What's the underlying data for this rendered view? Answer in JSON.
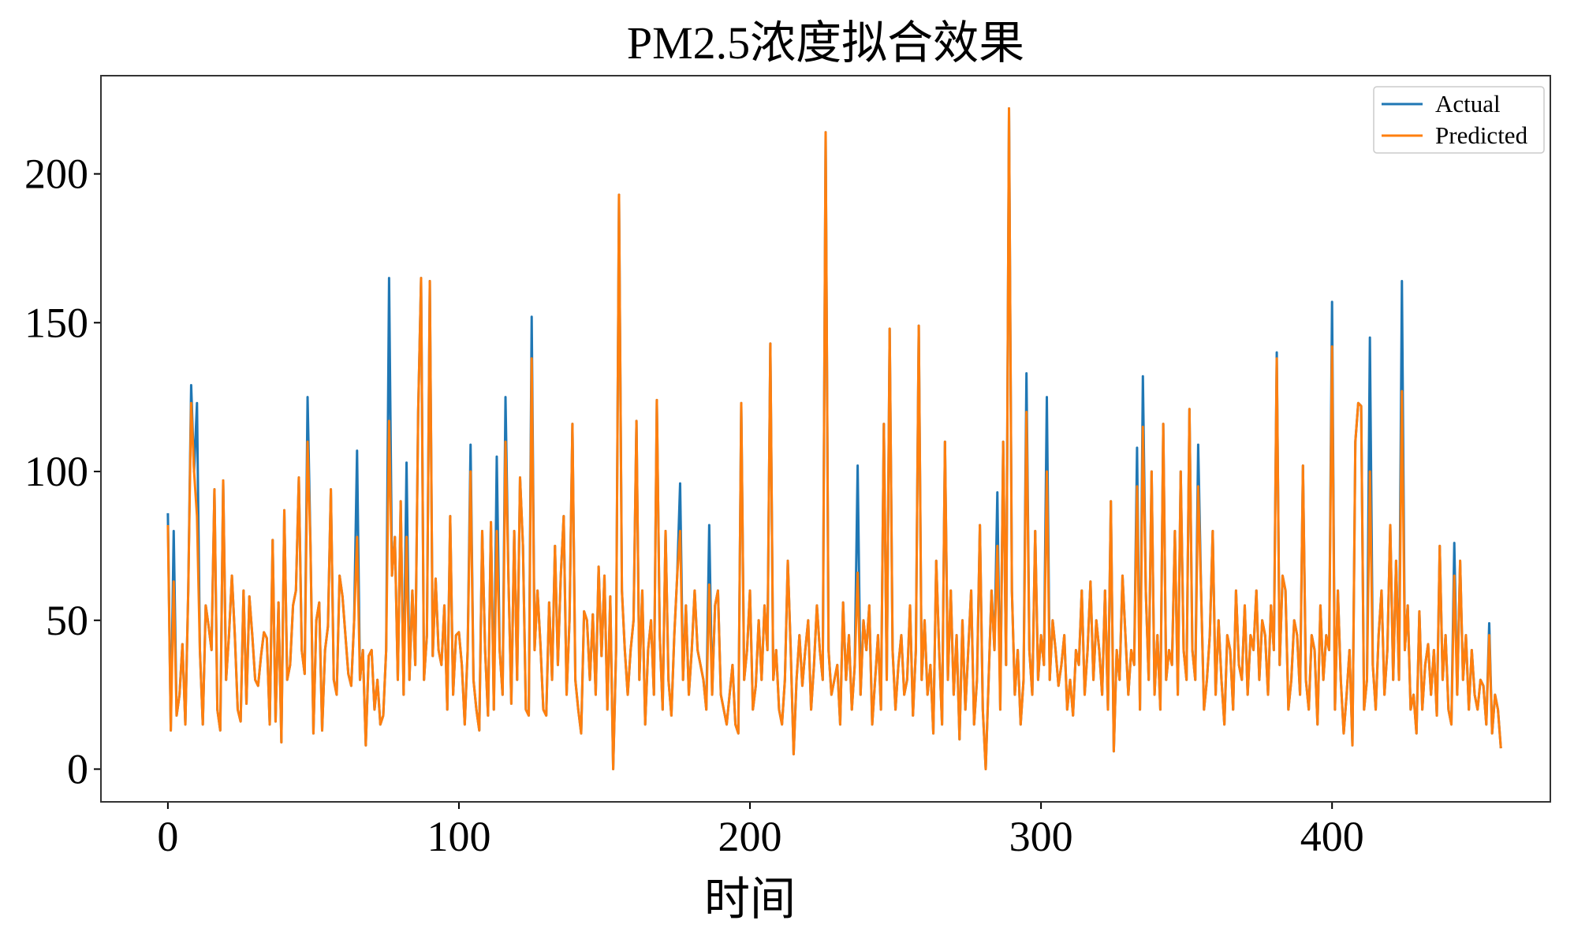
{
  "chart_data": {
    "type": "line",
    "title": "PM2.5浓度拟合效果",
    "x_label": "时间",
    "xlim": [
      -23,
      475
    ],
    "ylim": [
      -11,
      233
    ],
    "xticks": [
      0,
      100,
      200,
      300,
      400
    ],
    "yticks": [
      0,
      50,
      100,
      150,
      200
    ],
    "legend": "upper right",
    "x": [
      0,
      1,
      2,
      3,
      4,
      5,
      6,
      7,
      8,
      9,
      10,
      11,
      12,
      13,
      14,
      15,
      16,
      17,
      18,
      19,
      20,
      21,
      22,
      23,
      24,
      25,
      26,
      27,
      28,
      29,
      30,
      31,
      32,
      33,
      34,
      35,
      36,
      37,
      38,
      39,
      40,
      41,
      42,
      43,
      44,
      45,
      46,
      47,
      48,
      49,
      50,
      51,
      52,
      53,
      54,
      55,
      56,
      57,
      58,
      59,
      60,
      61,
      62,
      63,
      64,
      65,
      66,
      67,
      68,
      69,
      70,
      71,
      72,
      73,
      74,
      75,
      76,
      77,
      78,
      79,
      80,
      81,
      82,
      83,
      84,
      85,
      86,
      87,
      88,
      89,
      90,
      91,
      92,
      93,
      94,
      95,
      96,
      97,
      98,
      99,
      100,
      101,
      102,
      103,
      104,
      105,
      106,
      107,
      108,
      109,
      110,
      111,
      112,
      113,
      114,
      115,
      116,
      117,
      118,
      119,
      120,
      121,
      122,
      123,
      124,
      125,
      126,
      127,
      128,
      129,
      130,
      131,
      132,
      133,
      134,
      135,
      136,
      137,
      138,
      139,
      140,
      141,
      142,
      143,
      144,
      145,
      146,
      147,
      148,
      149,
      150,
      151,
      152,
      153,
      154,
      155,
      156,
      157,
      158,
      159,
      160,
      161,
      162,
      163,
      164,
      165,
      166,
      167,
      168,
      169,
      170,
      171,
      172,
      173,
      174,
      175,
      176,
      177,
      178,
      179,
      180,
      181,
      182,
      183,
      184,
      185,
      186,
      187,
      188,
      189,
      190,
      191,
      192,
      193,
      194,
      195,
      196,
      197,
      198,
      199,
      200,
      201,
      202,
      203,
      204,
      205,
      206,
      207,
      208,
      209,
      210,
      211,
      212,
      213,
      214,
      215,
      216,
      217,
      218,
      219,
      220,
      221,
      222,
      223,
      224,
      225,
      226,
      227,
      228,
      229,
      230,
      231,
      232,
      233,
      234,
      235,
      236,
      237,
      238,
      239,
      240,
      241,
      242,
      243,
      244,
      245,
      246,
      247,
      248,
      249,
      250,
      251,
      252,
      253,
      254,
      255,
      256,
      257,
      258,
      259,
      260,
      261,
      262,
      263,
      264,
      265,
      266,
      267,
      268,
      269,
      270,
      271,
      272,
      273,
      274,
      275,
      276,
      277,
      278,
      279,
      280,
      281,
      282,
      283,
      284,
      285,
      286,
      287,
      288,
      289,
      290,
      291,
      292,
      293,
      294,
      295,
      296,
      297,
      298,
      299,
      300,
      301,
      302,
      303,
      304,
      305,
      306,
      307,
      308,
      309,
      310,
      311,
      312,
      313,
      314,
      315,
      316,
      317,
      318,
      319,
      320,
      321,
      322,
      323,
      324,
      325,
      326,
      327,
      328,
      329,
      330,
      331,
      332,
      333,
      334,
      335,
      336,
      337,
      338,
      339,
      340,
      341,
      342,
      343,
      344,
      345,
      346,
      347,
      348,
      349,
      350,
      351,
      352,
      353,
      354,
      355,
      356,
      357,
      358,
      359,
      360,
      361,
      362,
      363,
      364,
      365,
      366,
      367,
      368,
      369,
      370,
      371,
      372,
      373,
      374,
      375,
      376,
      377,
      378,
      379,
      380,
      381,
      382,
      383,
      384,
      385,
      386,
      387,
      388,
      389,
      390,
      391,
      392,
      393,
      394,
      395,
      396,
      397,
      398,
      399,
      400,
      401,
      402,
      403,
      404,
      405,
      406,
      407,
      408,
      409,
      410,
      411,
      412,
      413,
      414,
      415,
      416,
      417,
      418,
      419,
      420,
      421,
      422,
      423,
      424,
      425,
      426,
      427,
      428,
      429,
      430,
      431,
      432,
      433,
      434,
      435,
      436,
      437,
      438,
      439,
      440,
      441,
      442,
      443,
      444,
      445,
      446,
      447,
      448,
      449,
      450,
      451,
      452,
      453,
      454,
      455,
      456,
      457,
      458
    ],
    "series": [
      {
        "name": "Actual",
        "color": "#1f77b4",
        "values": [
          86,
          13,
          80,
          18,
          25,
          42,
          15,
          60,
          129,
          100,
          123,
          40,
          15,
          55,
          48,
          40,
          94,
          20,
          13,
          97,
          30,
          45,
          65,
          45,
          20,
          16,
          60,
          22,
          58,
          45,
          30,
          28,
          38,
          46,
          44,
          15,
          77,
          16,
          56,
          9,
          87,
          30,
          35,
          55,
          60,
          98,
          40,
          32,
          125,
          75,
          12,
          50,
          56,
          13,
          40,
          48,
          94,
          30,
          25,
          65,
          58,
          45,
          32,
          28,
          50,
          107,
          30,
          40,
          8,
          38,
          40,
          20,
          30,
          15,
          18,
          40,
          165,
          65,
          78,
          30,
          90,
          25,
          103,
          30,
          60,
          35,
          120,
          165,
          30,
          45,
          164,
          38,
          64,
          40,
          35,
          55,
          20,
          85,
          25,
          45,
          46,
          35,
          15,
          40,
          109,
          30,
          20,
          13,
          80,
          40,
          18,
          83,
          20,
          105,
          40,
          25,
          125,
          65,
          22,
          80,
          30,
          98,
          75,
          20,
          18,
          152,
          40,
          60,
          42,
          20,
          18,
          56,
          30,
          75,
          35,
          65,
          85,
          25,
          50,
          116,
          30,
          20,
          12,
          53,
          50,
          30,
          52,
          25,
          68,
          38,
          65,
          20,
          58,
          0,
          40,
          193,
          60,
          40,
          25,
          40,
          50,
          117,
          30,
          60,
          15,
          40,
          50,
          25,
          124,
          45,
          20,
          80,
          30,
          18,
          45,
          65,
          96,
          30,
          55,
          25,
          40,
          60,
          40,
          35,
          30,
          20,
          82,
          25,
          55,
          60,
          25,
          20,
          15,
          25,
          35,
          15,
          12,
          123,
          30,
          40,
          60,
          20,
          28,
          50,
          30,
          55,
          40,
          143,
          30,
          40,
          20,
          15,
          30,
          70,
          40,
          5,
          30,
          45,
          28,
          40,
          50,
          20,
          35,
          55,
          40,
          30,
          214,
          40,
          25,
          30,
          35,
          15,
          56,
          30,
          45,
          20,
          35,
          102,
          25,
          50,
          40,
          55,
          15,
          30,
          45,
          20,
          116,
          30,
          148,
          40,
          20,
          35,
          45,
          25,
          30,
          55,
          18,
          40,
          149,
          30,
          50,
          25,
          35,
          12,
          70,
          40,
          15,
          110,
          30,
          60,
          25,
          45,
          10,
          50,
          20,
          40,
          60,
          15,
          30,
          82,
          20,
          0,
          30,
          60,
          40,
          93,
          20,
          110,
          35,
          222,
          60,
          25,
          40,
          15,
          30,
          133,
          40,
          25,
          80,
          30,
          45,
          35,
          125,
          30,
          50,
          40,
          28,
          35,
          45,
          20,
          30,
          18,
          40,
          35,
          60,
          25,
          40,
          63,
          30,
          50,
          40,
          25,
          60,
          20,
          90,
          6,
          40,
          30,
          65,
          45,
          25,
          40,
          35,
          108,
          20,
          132,
          60,
          30,
          100,
          25,
          45,
          20,
          116,
          30,
          40,
          35,
          80,
          25,
          100,
          40,
          30,
          121,
          40,
          30,
          109,
          60,
          20,
          30,
          45,
          80,
          25,
          50,
          30,
          15,
          45,
          40,
          20,
          60,
          35,
          30,
          55,
          25,
          45,
          40,
          60,
          30,
          50,
          45,
          25,
          55,
          40,
          140,
          35,
          65,
          60,
          20,
          30,
          50,
          45,
          25,
          102,
          30,
          20,
          45,
          40,
          15,
          55,
          30,
          45,
          40,
          157,
          20,
          60,
          30,
          12,
          25,
          40,
          8,
          110,
          123,
          122,
          20,
          30,
          145,
          35,
          20,
          45,
          60,
          25,
          40,
          82,
          30,
          70,
          30,
          164,
          40,
          55,
          20,
          25,
          12,
          53,
          20,
          35,
          42,
          25,
          40,
          18,
          75,
          30,
          45,
          20,
          15,
          76,
          25,
          70,
          30,
          45,
          20,
          40,
          25,
          20,
          30,
          28,
          15,
          49,
          12,
          25,
          20,
          7
        ]
      },
      {
        "name": "Predicted",
        "color": "#ff7f0e",
        "values": [
          82,
          13,
          63,
          18,
          25,
          42,
          15,
          60,
          123,
          100,
          85,
          40,
          15,
          55,
          48,
          40,
          94,
          20,
          13,
          97,
          30,
          45,
          65,
          45,
          20,
          16,
          60,
          22,
          58,
          45,
          30,
          28,
          38,
          46,
          44,
          15,
          77,
          16,
          56,
          9,
          87,
          30,
          35,
          55,
          60,
          98,
          40,
          32,
          110,
          75,
          12,
          50,
          56,
          13,
          40,
          48,
          94,
          30,
          25,
          65,
          58,
          45,
          32,
          28,
          50,
          78,
          30,
          40,
          8,
          38,
          40,
          20,
          30,
          15,
          18,
          40,
          117,
          65,
          78,
          30,
          90,
          25,
          78,
          30,
          60,
          35,
          120,
          165,
          30,
          45,
          164,
          38,
          64,
          40,
          35,
          55,
          20,
          85,
          25,
          45,
          46,
          35,
          15,
          40,
          100,
          30,
          20,
          13,
          80,
          40,
          18,
          83,
          20,
          80,
          40,
          25,
          110,
          65,
          22,
          80,
          30,
          98,
          75,
          20,
          18,
          138,
          40,
          60,
          42,
          20,
          18,
          56,
          30,
          75,
          35,
          65,
          85,
          25,
          50,
          116,
          30,
          20,
          12,
          53,
          50,
          30,
          52,
          25,
          68,
          38,
          65,
          20,
          58,
          0,
          40,
          193,
          60,
          40,
          25,
          40,
          50,
          117,
          30,
          60,
          15,
          40,
          50,
          25,
          124,
          45,
          20,
          80,
          30,
          18,
          45,
          65,
          80,
          30,
          55,
          25,
          40,
          60,
          40,
          35,
          30,
          20,
          62,
          25,
          55,
          60,
          25,
          20,
          15,
          25,
          35,
          15,
          12,
          123,
          30,
          40,
          60,
          20,
          28,
          50,
          30,
          55,
          40,
          143,
          30,
          40,
          20,
          15,
          30,
          70,
          40,
          5,
          30,
          45,
          28,
          40,
          50,
          20,
          35,
          55,
          40,
          30,
          214,
          40,
          25,
          30,
          35,
          15,
          56,
          30,
          45,
          20,
          35,
          66,
          25,
          50,
          40,
          55,
          15,
          30,
          45,
          20,
          116,
          30,
          148,
          40,
          20,
          35,
          45,
          25,
          30,
          55,
          18,
          40,
          149,
          30,
          50,
          25,
          35,
          12,
          70,
          40,
          15,
          110,
          30,
          60,
          25,
          45,
          10,
          50,
          20,
          40,
          60,
          15,
          30,
          82,
          20,
          0,
          30,
          60,
          40,
          75,
          20,
          110,
          35,
          222,
          60,
          25,
          40,
          15,
          30,
          120,
          40,
          25,
          80,
          30,
          45,
          35,
          100,
          30,
          50,
          40,
          28,
          35,
          45,
          20,
          30,
          18,
          40,
          35,
          60,
          25,
          40,
          63,
          30,
          50,
          40,
          25,
          60,
          20,
          90,
          6,
          40,
          30,
          65,
          45,
          25,
          40,
          35,
          95,
          20,
          115,
          60,
          30,
          100,
          25,
          45,
          20,
          116,
          30,
          40,
          35,
          80,
          25,
          100,
          40,
          30,
          121,
          40,
          30,
          95,
          60,
          20,
          30,
          45,
          80,
          25,
          50,
          30,
          15,
          45,
          40,
          20,
          60,
          35,
          30,
          55,
          25,
          45,
          40,
          60,
          30,
          50,
          45,
          25,
          55,
          40,
          138,
          35,
          65,
          60,
          20,
          30,
          50,
          45,
          25,
          102,
          30,
          20,
          45,
          40,
          15,
          55,
          30,
          45,
          40,
          142,
          20,
          60,
          30,
          12,
          25,
          40,
          8,
          110,
          123,
          122,
          20,
          30,
          100,
          35,
          20,
          45,
          60,
          25,
          40,
          82,
          30,
          70,
          30,
          127,
          40,
          55,
          20,
          25,
          12,
          53,
          20,
          35,
          42,
          25,
          40,
          18,
          75,
          30,
          45,
          20,
          15,
          65,
          25,
          70,
          30,
          45,
          20,
          40,
          25,
          20,
          30,
          28,
          15,
          45,
          12,
          25,
          20,
          7
        ]
      }
    ]
  }
}
